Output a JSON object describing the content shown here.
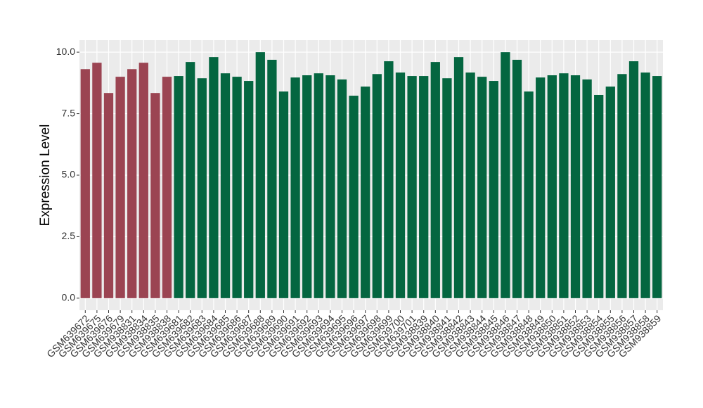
{
  "chart_data": {
    "type": "bar",
    "y_label": "Expression Level",
    "categories": [
      "GSM639672",
      "GSM639675",
      "GSM639676",
      "GSM639679",
      "GSM938831",
      "GSM938834",
      "GSM938835",
      "GSM938838",
      "GSM639681",
      "GSM639682",
      "GSM639683",
      "GSM639684",
      "GSM639685",
      "GSM639686",
      "GSM639687",
      "GSM639688",
      "GSM639689",
      "GSM639690",
      "GSM639691",
      "GSM639692",
      "GSM639693",
      "GSM639694",
      "GSM639695",
      "GSM639696",
      "GSM639697",
      "GSM639698",
      "GSM639699",
      "GSM639700",
      "GSM639701",
      "GSM938839",
      "GSM938840",
      "GSM938841",
      "GSM938842",
      "GSM938843",
      "GSM938844",
      "GSM938845",
      "GSM938846",
      "GSM938847",
      "GSM938848",
      "GSM938849",
      "GSM938850",
      "GSM938851",
      "GSM938852",
      "GSM938853",
      "GSM938854",
      "GSM938855",
      "GSM938856",
      "GSM938857",
      "GSM938858",
      "GSM938859"
    ],
    "values": [
      9.31,
      9.57,
      8.34,
      9.0,
      9.31,
      9.57,
      8.34,
      9.0,
      9.03,
      9.6,
      8.94,
      9.8,
      9.14,
      9.0,
      8.83,
      10.0,
      9.69,
      8.4,
      8.97,
      9.06,
      9.14,
      9.06,
      8.89,
      8.23,
      8.6,
      9.11,
      9.63,
      9.17,
      9.03,
      9.03,
      9.6,
      8.94,
      9.8,
      9.17,
      9.0,
      8.83,
      10.0,
      9.69,
      8.4,
      8.97,
      9.06,
      9.14,
      9.06,
      8.89,
      8.26,
      8.6,
      9.11,
      9.63,
      9.17,
      9.03
    ],
    "colors": [
      "#9b4452",
      "#9b4452",
      "#9b4452",
      "#9b4452",
      "#9b4452",
      "#9b4452",
      "#9b4452",
      "#9b4452",
      "#046640",
      "#046640",
      "#046640",
      "#046640",
      "#046640",
      "#046640",
      "#046640",
      "#046640",
      "#046640",
      "#046640",
      "#046640",
      "#046640",
      "#046640",
      "#046640",
      "#046640",
      "#046640",
      "#046640",
      "#046640",
      "#046640",
      "#046640",
      "#046640",
      "#046640",
      "#046640",
      "#046640",
      "#046640",
      "#046640",
      "#046640",
      "#046640",
      "#046640",
      "#046640",
      "#046640",
      "#046640",
      "#046640",
      "#046640",
      "#046640",
      "#046640",
      "#046640",
      "#046640",
      "#046640",
      "#046640",
      "#046640",
      "#046640"
    ],
    "ylim": [
      -0.49,
      10.49
    ],
    "yticks": [
      {
        "value": 0,
        "label": "0.0"
      },
      {
        "value": 2.5,
        "label": "2.5"
      },
      {
        "value": 5,
        "label": "5.0"
      },
      {
        "value": 7.5,
        "label": "7.5"
      },
      {
        "value": 10,
        "label": "10.0"
      }
    ],
    "grid": true
  }
}
